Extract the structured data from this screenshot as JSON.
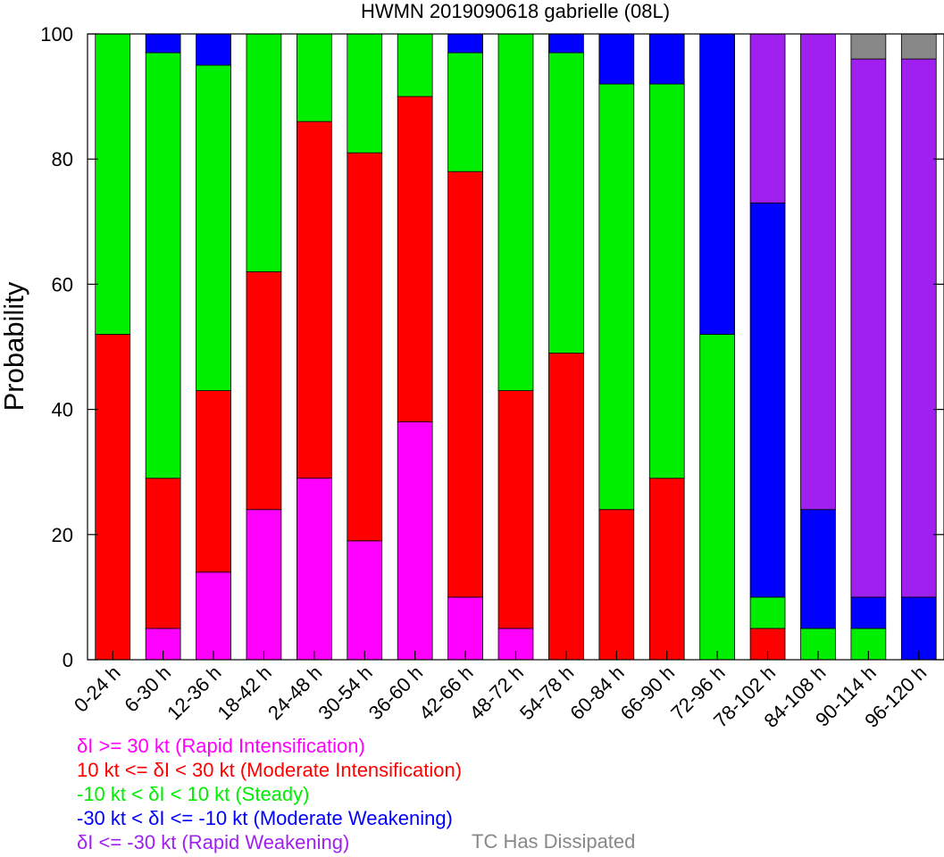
{
  "chart_data": {
    "type": "bar",
    "stacked": true,
    "title": "HWMN 2019090618 gabrielle (08L)",
    "ylabel": "Probability",
    "ylim": [
      0,
      100
    ],
    "yticks": [
      0,
      20,
      40,
      60,
      80,
      100
    ],
    "categories": [
      "0-24 h",
      "6-30 h",
      "12-36 h",
      "18-42 h",
      "24-48 h",
      "30-54 h",
      "36-60 h",
      "42-66 h",
      "48-72 h",
      "54-78 h",
      "60-84 h",
      "66-90 h",
      "72-96 h",
      "78-102 h",
      "84-108 h",
      "90-114 h",
      "96-120 h"
    ],
    "series": [
      {
        "name": "δI >= 30 kt (Rapid Intensification)",
        "color": "#ff00ff",
        "values": [
          0,
          5,
          14,
          24,
          29,
          19,
          38,
          10,
          5,
          0,
          0,
          0,
          0,
          0,
          0,
          0,
          0
        ]
      },
      {
        "name": "10 kt <= δI < 30 kt (Moderate Intensification)",
        "color": "#ff0000",
        "values": [
          52,
          24,
          29,
          38,
          57,
          62,
          52,
          68,
          38,
          49,
          24,
          29,
          0,
          5,
          0,
          0,
          0
        ]
      },
      {
        "name": "-10 kt < δI < 10 kt (Steady)",
        "color": "#00ee00",
        "values": [
          48,
          68,
          52,
          38,
          14,
          19,
          10,
          19,
          57,
          48,
          68,
          63,
          52,
          5,
          5,
          5,
          0
        ]
      },
      {
        "name": "-30 kt < δI <= -10 kt (Moderate Weakening)",
        "color": "#0000ff",
        "values": [
          0,
          3,
          5,
          0,
          0,
          0,
          0,
          3,
          0,
          3,
          8,
          8,
          48,
          63,
          19,
          5,
          10
        ]
      },
      {
        "name": "δI <= -30 kt (Rapid Weakening)",
        "color": "#a020f0",
        "values": [
          0,
          0,
          0,
          0,
          0,
          0,
          0,
          0,
          0,
          0,
          0,
          0,
          0,
          27,
          76,
          86,
          86
        ]
      },
      {
        "name": "TC Has Dissipated",
        "color": "#888888",
        "values": [
          0,
          0,
          0,
          0,
          0,
          0,
          0,
          0,
          0,
          0,
          0,
          0,
          0,
          0,
          0,
          4,
          4
        ]
      }
    ]
  }
}
